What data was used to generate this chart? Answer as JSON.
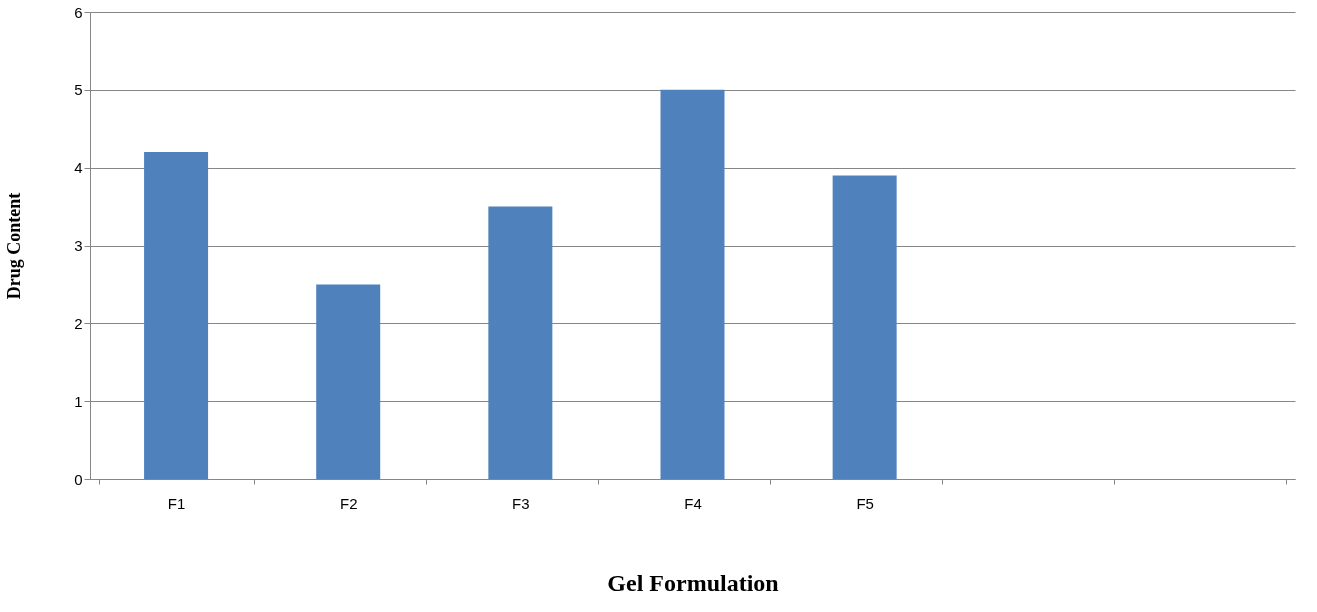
{
  "chart_data": {
    "type": "bar",
    "xlabel": "Gel Formulation",
    "ylabel": "Drug Content",
    "categories": [
      "F1",
      "F2",
      "F3",
      "F4",
      "F5",
      null,
      null
    ],
    "values": [
      4.2,
      2.5,
      3.5,
      5.0,
      3.9,
      null,
      null
    ],
    "color": "#4f81bd",
    "ylim": [
      0,
      6
    ],
    "yticks": [
      0,
      1,
      2,
      3,
      4,
      5,
      6
    ],
    "grid": "y"
  }
}
